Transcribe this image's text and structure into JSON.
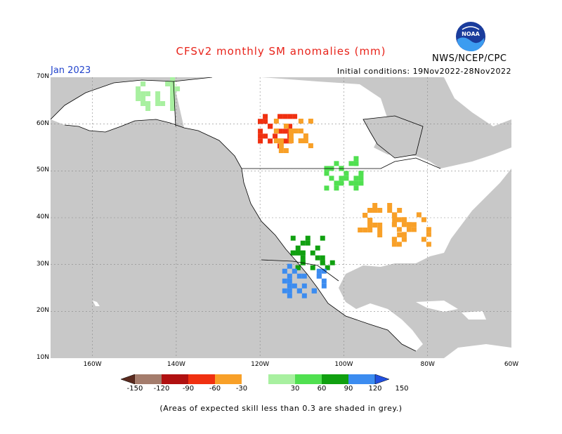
{
  "title": "CFSv2 monthly SM anomalies (mm)",
  "month": "Jan 2023",
  "initial_conditions": "Initial conditions: 19Nov2022-28Nov2022",
  "agency": "NWS/NCEP/CPC",
  "logo_text": "NOAA",
  "footnote": "(Areas of expected skill less than 0.3 are shaded in grey.)",
  "colors": {
    "ocean": "#c8c8c8",
    "land": "#ffffff",
    "c_lt_-150": "#5a2a1e",
    "c_-150_-120": "#a47c6c",
    "c_-120_-90": "#b01010",
    "c_-90_-60": "#f03010",
    "c_-60_-30": "#f8a028",
    "c_30_60": "#a8f0a0",
    "c_60_90": "#50e050",
    "c_90_120": "#10a010",
    "c_120_150": "#3c8cf0",
    "c_gt_150": "#2050e0"
  },
  "map": {
    "lat_range": [
      10,
      70
    ],
    "lon_range": [
      -170,
      -60
    ],
    "y_ticks": [
      "70N",
      "60N",
      "50N",
      "40N",
      "30N",
      "20N",
      "10N"
    ],
    "x_ticks": [
      "160W",
      "140W",
      "120W",
      "100W",
      "80W",
      "60W"
    ]
  },
  "legend": {
    "labels": [
      "-150",
      "-120",
      "-90",
      "-60",
      "-30",
      "30",
      "60",
      "90",
      "120",
      "150"
    ],
    "colors": [
      "#5a2a1e",
      "#a47c6c",
      "#b01010",
      "#f03010",
      "#f8a028",
      "#ffffff",
      "#a8f0a0",
      "#50e050",
      "#10a010",
      "#3c8cf0",
      "#2050e0"
    ]
  },
  "anomaly_regions": [
    {
      "name": "western-canada-dry-core",
      "lat": 59,
      "lon": -117,
      "category": "c_-90_-60"
    },
    {
      "name": "western-canada-dry-ring",
      "lat": 58,
      "lon": -112,
      "category": "c_-60_-30"
    },
    {
      "name": "midwest-dry",
      "lat": 40,
      "lon": -92,
      "category": "c_-60_-30"
    },
    {
      "name": "ohio-valley-dry",
      "lat": 38,
      "lon": -85,
      "category": "c_-60_-30"
    },
    {
      "name": "southwest-wet",
      "lat": 33,
      "lon": -108,
      "category": "c_90_120"
    },
    {
      "name": "mexico-pacific-wet",
      "lat": 27,
      "lon": -110,
      "category": "c_120_150"
    },
    {
      "name": "alaska-north-wet",
      "lat": 67,
      "lon": -145,
      "category": "c_30_60"
    },
    {
      "name": "canada-prairie-wet",
      "lat": 50,
      "lon": -100,
      "category": "c_60_90"
    }
  ]
}
